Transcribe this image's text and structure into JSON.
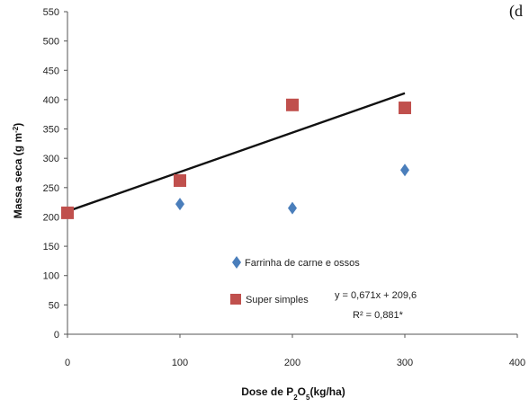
{
  "panel_label": "(d",
  "chart_data": {
    "type": "scatter",
    "xlabel": "Dose de P₂O₅(kg/ha)",
    "xlabel_parts": {
      "pre": "Dose de P",
      "sub1": "2",
      "mid": "O",
      "sub2": "5",
      "post": "(kg/ha)"
    },
    "ylabel": "Massa seca (g m⁻²)",
    "ylabel_parts": {
      "pre": "Massa seca  (g m",
      "sup": "-2",
      "post": ")"
    },
    "xlim": [
      0,
      400
    ],
    "ylim": [
      0,
      550
    ],
    "xticks": [
      "0",
      "100",
      "200",
      "300",
      "400"
    ],
    "yticks": [
      "0",
      "50",
      "100",
      "150",
      "200",
      "250",
      "300",
      "350",
      "400",
      "450",
      "500",
      "550"
    ],
    "grid": false,
    "legend_position": "lower-center",
    "series": [
      {
        "name": "Farrinha de carne e ossos",
        "marker": "diamond",
        "color": "#4a7ebb",
        "x": [
          0,
          100,
          200,
          300
        ],
        "y": [
          207,
          222,
          215,
          280
        ]
      },
      {
        "name": "Super simples",
        "marker": "square",
        "color": "#c0504d",
        "x": [
          0,
          100,
          200,
          300
        ],
        "y": [
          207,
          262,
          391,
          386
        ]
      }
    ],
    "trendline": {
      "series": "Super simples",
      "slope": 0.671,
      "intercept": 209.6,
      "x_range": [
        0,
        300
      ],
      "color": "#111111",
      "equation": "y = 0,671x + 209,6",
      "r2": "R² = 0,881*"
    }
  }
}
